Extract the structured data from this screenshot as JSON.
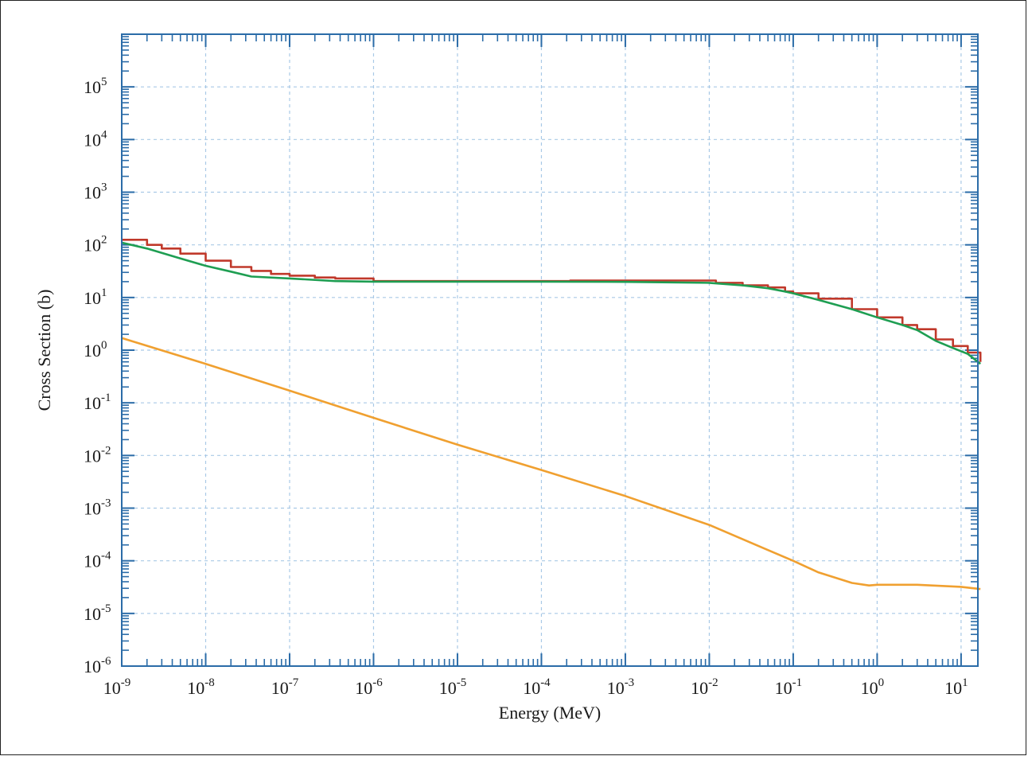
{
  "chart_data": {
    "type": "line",
    "title": "",
    "xlabel": "Energy (MeV)",
    "ylabel": "Cross Section (b)",
    "x_scale": "log",
    "y_scale": "log",
    "xlim_exp": [
      -9,
      1.2
    ],
    "ylim_exp": [
      -6,
      6
    ],
    "x_ticks": [
      {
        "base": "10",
        "exp": "-9"
      },
      {
        "base": "10",
        "exp": "-8"
      },
      {
        "base": "10",
        "exp": "-7"
      },
      {
        "base": "10",
        "exp": "-6"
      },
      {
        "base": "10",
        "exp": "-5"
      },
      {
        "base": "10",
        "exp": "-4"
      },
      {
        "base": "10",
        "exp": "-3"
      },
      {
        "base": "10",
        "exp": "-2"
      },
      {
        "base": "10",
        "exp": "-1"
      },
      {
        "base": "10",
        "exp": "0"
      },
      {
        "base": "10",
        "exp": "1"
      }
    ],
    "y_ticks": [
      {
        "base": "10",
        "exp": "-6"
      },
      {
        "base": "10",
        "exp": "-5"
      },
      {
        "base": "10",
        "exp": "-4"
      },
      {
        "base": "10",
        "exp": "-3"
      },
      {
        "base": "10",
        "exp": "-2"
      },
      {
        "base": "10",
        "exp": "-1"
      },
      {
        "base": "10",
        "exp": "0"
      },
      {
        "base": "10",
        "exp": "1"
      },
      {
        "base": "10",
        "exp": "2"
      },
      {
        "base": "10",
        "exp": "3"
      },
      {
        "base": "10",
        "exp": "4"
      },
      {
        "base": "10",
        "exp": "5"
      }
    ],
    "grid": true,
    "colors": {
      "axis": "#2b6ca8",
      "grid": "#a9c9e6"
    },
    "series": [
      {
        "color": "#c0392b",
        "style": "step",
        "points": [
          [
            1e-09,
            125
          ],
          [
            2e-09,
            100
          ],
          [
            3e-09,
            85
          ],
          [
            5e-09,
            68
          ],
          [
            1e-08,
            50
          ],
          [
            2e-08,
            38
          ],
          [
            3.5e-08,
            32
          ],
          [
            6e-08,
            28
          ],
          [
            1e-07,
            26
          ],
          [
            2e-07,
            24
          ],
          [
            3.5e-07,
            23
          ],
          [
            1e-06,
            20.5
          ],
          [
            1e-05,
            20.5
          ],
          [
            0.00022,
            21
          ],
          [
            0.005,
            21
          ],
          [
            0.012,
            19
          ],
          [
            0.025,
            17
          ],
          [
            0.05,
            15.5
          ],
          [
            0.08,
            13
          ],
          [
            0.1,
            12
          ],
          [
            0.2,
            9.5
          ],
          [
            0.5,
            6
          ],
          [
            1,
            4.2
          ],
          [
            2,
            3
          ],
          [
            3,
            2.5
          ],
          [
            5,
            1.6
          ],
          [
            8,
            1.2
          ],
          [
            12,
            0.9
          ],
          [
            17,
            0.6
          ]
        ]
      },
      {
        "color": "#1e9e52",
        "style": "line",
        "points": [
          [
            1e-09,
            110
          ],
          [
            2e-09,
            85
          ],
          [
            5e-09,
            55
          ],
          [
            1e-08,
            40
          ],
          [
            2e-08,
            31
          ],
          [
            3.5e-08,
            25
          ],
          [
            1e-07,
            23
          ],
          [
            3.5e-07,
            20.5
          ],
          [
            1e-06,
            20
          ],
          [
            1e-05,
            20
          ],
          [
            0.0001,
            20
          ],
          [
            0.001,
            19.8
          ],
          [
            0.01,
            19
          ],
          [
            0.025,
            17
          ],
          [
            0.05,
            15
          ],
          [
            0.08,
            13
          ],
          [
            0.1,
            12
          ],
          [
            0.2,
            9
          ],
          [
            0.5,
            6
          ],
          [
            1,
            4.2
          ],
          [
            2,
            3
          ],
          [
            3,
            2.4
          ],
          [
            5,
            1.5
          ],
          [
            8,
            1.1
          ],
          [
            12,
            0.85
          ],
          [
            17,
            0.55
          ]
        ]
      },
      {
        "color": "#f0a030",
        "style": "line",
        "points": [
          [
            1e-09,
            1.7
          ],
          [
            1e-08,
            0.55
          ],
          [
            1e-07,
            0.17
          ],
          [
            1e-06,
            0.052
          ],
          [
            1e-05,
            0.016
          ],
          [
            0.0001,
            0.0053
          ],
          [
            0.001,
            0.0017
          ],
          [
            0.01,
            0.00048
          ],
          [
            0.05,
            0.00016
          ],
          [
            0.1,
            0.0001
          ],
          [
            0.2,
            6e-05
          ],
          [
            0.5,
            3.8e-05
          ],
          [
            0.8,
            3.4e-05
          ],
          [
            1,
            3.5e-05
          ],
          [
            3,
            3.5e-05
          ],
          [
            10,
            3.2e-05
          ],
          [
            17,
            2.9e-05
          ]
        ]
      }
    ]
  }
}
